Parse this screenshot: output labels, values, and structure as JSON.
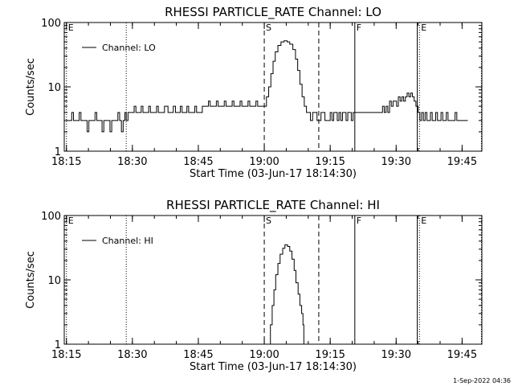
{
  "footer": {
    "timestamp": "1-Sep-2022 04:36"
  },
  "chart_data": [
    {
      "type": "line",
      "title": "RHESSI PARTICLE_RATE Channel: LO",
      "xlabel": "Start Time (03-Jun-17 18:14:30)",
      "ylabel": "Counts/sec",
      "xaxis": {
        "ticks": [
          "18:15",
          "18:30",
          "18:45",
          "19:00",
          "19:15",
          "19:30",
          "19:45"
        ],
        "range_minutes": [
          0,
          95
        ]
      },
      "yaxis": {
        "scale": "log",
        "range": [
          1,
          100
        ],
        "ticks": [
          "1",
          "10",
          "100"
        ]
      },
      "legend": {
        "placement": "top-left",
        "entries": [
          "Channel: LO"
        ]
      },
      "markers": [
        {
          "label": "E",
          "time": "18:15.0",
          "minutes": 0.5,
          "style": "dotted"
        },
        {
          "label": "",
          "time": "18:28.6",
          "minutes": 14.1,
          "style": "dotted"
        },
        {
          "label": "S",
          "time": "19:00.0",
          "minutes": 45.5,
          "style": "dashed"
        },
        {
          "label": "",
          "time": "19:12.4",
          "minutes": 57.9,
          "style": "dashed"
        },
        {
          "label": "F",
          "time": "19:20.6",
          "minutes": 66.1,
          "style": "solid"
        },
        {
          "label": "",
          "time": "19:34.8",
          "minutes": 80.3,
          "style": "solid"
        },
        {
          "label": "E",
          "time": "19:35.3",
          "minutes": 80.8,
          "style": "dotted"
        },
        {
          "label": "",
          "time": "19:49.4",
          "minutes": 94.9,
          "style": "dotted"
        }
      ],
      "series": [
        {
          "name": "Channel: LO",
          "points": [
            [
              0.5,
              3
            ],
            [
              1.3,
              3
            ],
            [
              1.7,
              4
            ],
            [
              2.1,
              3
            ],
            [
              3.0,
              3
            ],
            [
              3.4,
              4
            ],
            [
              3.8,
              3
            ],
            [
              4.8,
              3
            ],
            [
              5.2,
              2
            ],
            [
              5.6,
              3
            ],
            [
              6.6,
              3
            ],
            [
              7.0,
              4
            ],
            [
              7.4,
              3
            ],
            [
              8.2,
              3
            ],
            [
              8.6,
              2
            ],
            [
              9.0,
              3
            ],
            [
              10.0,
              3
            ],
            [
              10.4,
              2
            ],
            [
              10.8,
              3
            ],
            [
              11.8,
              3
            ],
            [
              12.2,
              4
            ],
            [
              12.6,
              3
            ],
            [
              13.0,
              2
            ],
            [
              13.4,
              3
            ],
            [
              13.8,
              4
            ],
            [
              14.1,
              3
            ],
            [
              14.5,
              4
            ],
            [
              15.5,
              4
            ],
            [
              15.9,
              5
            ],
            [
              16.3,
              4
            ],
            [
              17.1,
              4
            ],
            [
              17.5,
              5
            ],
            [
              17.9,
              4
            ],
            [
              18.8,
              4
            ],
            [
              19.2,
              5
            ],
            [
              19.6,
              4
            ],
            [
              20.6,
              4
            ],
            [
              21.0,
              5
            ],
            [
              21.4,
              4
            ],
            [
              22.3,
              4
            ],
            [
              22.8,
              5
            ],
            [
              23.2,
              5
            ],
            [
              23.6,
              4
            ],
            [
              24.4,
              4
            ],
            [
              24.8,
              5
            ],
            [
              25.3,
              4
            ],
            [
              26.0,
              4
            ],
            [
              26.4,
              5
            ],
            [
              26.8,
              4
            ],
            [
              27.5,
              4
            ],
            [
              27.9,
              5
            ],
            [
              28.3,
              4
            ],
            [
              29.3,
              4
            ],
            [
              29.7,
              5
            ],
            [
              30.1,
              4
            ],
            [
              31.0,
              4
            ],
            [
              31.4,
              5
            ],
            [
              32.4,
              5
            ],
            [
              32.8,
              6
            ],
            [
              33.2,
              5
            ],
            [
              34.2,
              5
            ],
            [
              34.6,
              6
            ],
            [
              35.0,
              5
            ],
            [
              36.0,
              5
            ],
            [
              36.4,
              6
            ],
            [
              36.8,
              5
            ],
            [
              37.8,
              5
            ],
            [
              38.2,
              6
            ],
            [
              38.6,
              5
            ],
            [
              39.6,
              5
            ],
            [
              40.0,
              6
            ],
            [
              40.4,
              5
            ],
            [
              41.4,
              5
            ],
            [
              41.8,
              6
            ],
            [
              42.2,
              5
            ],
            [
              43.2,
              5
            ],
            [
              43.6,
              6
            ],
            [
              44.0,
              5
            ],
            [
              45.5,
              5
            ],
            [
              46.0,
              7
            ],
            [
              46.5,
              10
            ],
            [
              47.0,
              16
            ],
            [
              47.5,
              25
            ],
            [
              48.0,
              35
            ],
            [
              48.6,
              44
            ],
            [
              49.3,
              50
            ],
            [
              50.0,
              52
            ],
            [
              50.7,
              50
            ],
            [
              51.3,
              46
            ],
            [
              52.0,
              38
            ],
            [
              52.6,
              27
            ],
            [
              53.1,
              18
            ],
            [
              53.6,
              11
            ],
            [
              54.1,
              7
            ],
            [
              54.6,
              5
            ],
            [
              55.1,
              4
            ],
            [
              55.5,
              4
            ],
            [
              56.0,
              3
            ],
            [
              56.5,
              4
            ],
            [
              57.0,
              4
            ],
            [
              57.5,
              3
            ],
            [
              58.0,
              3
            ],
            [
              58.4,
              4
            ],
            [
              58.9,
              4
            ],
            [
              59.3,
              3
            ],
            [
              60.1,
              3
            ],
            [
              60.5,
              4
            ],
            [
              60.9,
              3
            ],
            [
              61.3,
              4
            ],
            [
              61.7,
              4
            ],
            [
              62.1,
              3
            ],
            [
              62.5,
              4
            ],
            [
              62.9,
              3
            ],
            [
              63.3,
              4
            ],
            [
              63.7,
              4
            ],
            [
              64.1,
              3
            ],
            [
              64.5,
              4
            ],
            [
              64.9,
              4
            ],
            [
              65.3,
              3
            ],
            [
              65.7,
              4
            ],
            [
              66.1,
              4
            ],
            [
              66.5,
              4
            ],
            [
              67.3,
              4
            ],
            [
              68.1,
              4
            ],
            [
              69.0,
              4
            ],
            [
              69.8,
              4
            ],
            [
              70.6,
              4
            ],
            [
              71.4,
              4
            ],
            [
              72.0,
              4
            ],
            [
              72.4,
              5
            ],
            [
              72.8,
              4
            ],
            [
              73.2,
              5
            ],
            [
              73.6,
              4
            ],
            [
              74.0,
              6
            ],
            [
              74.4,
              5
            ],
            [
              74.8,
              6
            ],
            [
              75.2,
              6
            ],
            [
              75.6,
              5
            ],
            [
              76.0,
              7
            ],
            [
              76.4,
              6
            ],
            [
              76.8,
              7
            ],
            [
              77.2,
              6
            ],
            [
              77.6,
              7
            ],
            [
              78.0,
              8
            ],
            [
              78.4,
              7
            ],
            [
              78.8,
              8
            ],
            [
              79.2,
              7
            ],
            [
              79.6,
              6
            ],
            [
              80.0,
              5
            ],
            [
              80.5,
              4
            ],
            [
              80.9,
              3
            ],
            [
              81.3,
              4
            ],
            [
              81.7,
              3
            ],
            [
              82.1,
              4
            ],
            [
              82.5,
              3
            ],
            [
              82.9,
              3
            ],
            [
              83.3,
              4
            ],
            [
              83.7,
              3
            ],
            [
              84.1,
              3
            ],
            [
              84.5,
              4
            ],
            [
              84.9,
              3
            ],
            [
              85.3,
              3
            ],
            [
              85.7,
              4
            ],
            [
              86.1,
              3
            ],
            [
              86.5,
              3
            ],
            [
              86.9,
              4
            ],
            [
              87.3,
              3
            ],
            [
              87.7,
              3
            ],
            [
              88.1,
              3
            ],
            [
              88.5,
              3
            ],
            [
              88.9,
              4
            ],
            [
              89.3,
              3
            ],
            [
              90.0,
              3
            ],
            [
              91.0,
              3
            ],
            [
              91.8,
              3
            ]
          ]
        }
      ]
    },
    {
      "type": "line",
      "title": "RHESSI PARTICLE_RATE Channel: HI",
      "xlabel": "Start Time (03-Jun-17 18:14:30)",
      "ylabel": "Counts/sec",
      "xaxis": {
        "ticks": [
          "18:15",
          "18:30",
          "18:45",
          "19:00",
          "19:15",
          "19:30",
          "19:45"
        ],
        "range_minutes": [
          0,
          95
        ]
      },
      "yaxis": {
        "scale": "log",
        "range": [
          1,
          100
        ],
        "ticks": [
          "1",
          "10",
          "100"
        ]
      },
      "legend": {
        "placement": "top-left",
        "entries": [
          "Channel: HI"
        ]
      },
      "markers": [
        {
          "label": "E",
          "time": "18:15.0",
          "minutes": 0.5,
          "style": "dotted"
        },
        {
          "label": "",
          "time": "18:28.6",
          "minutes": 14.1,
          "style": "dotted"
        },
        {
          "label": "S",
          "time": "19:00.0",
          "minutes": 45.5,
          "style": "dashed"
        },
        {
          "label": "",
          "time": "19:12.4",
          "minutes": 57.9,
          "style": "dashed"
        },
        {
          "label": "F",
          "time": "19:20.6",
          "minutes": 66.1,
          "style": "solid"
        },
        {
          "label": "",
          "time": "19:34.8",
          "minutes": 80.3,
          "style": "solid"
        },
        {
          "label": "E",
          "time": "19:35.3",
          "minutes": 80.8,
          "style": "dotted"
        },
        {
          "label": "",
          "time": "19:49.4",
          "minutes": 94.9,
          "style": "dotted"
        }
      ],
      "series": [
        {
          "name": "Channel: HI",
          "points": [
            [
              46.4,
              0.9
            ],
            [
              46.6,
              1
            ],
            [
              46.9,
              2
            ],
            [
              47.3,
              4
            ],
            [
              47.7,
              7
            ],
            [
              48.1,
              12
            ],
            [
              48.6,
              18
            ],
            [
              49.1,
              25
            ],
            [
              49.7,
              31
            ],
            [
              50.2,
              35
            ],
            [
              50.8,
              33
            ],
            [
              51.3,
              28
            ],
            [
              51.8,
              21
            ],
            [
              52.3,
              14
            ],
            [
              52.7,
              9
            ],
            [
              53.2,
              6
            ],
            [
              53.6,
              4
            ],
            [
              54.0,
              3
            ],
            [
              54.3,
              2
            ],
            [
              54.5,
              1
            ],
            [
              54.6,
              0.9
            ]
          ]
        }
      ]
    }
  ]
}
